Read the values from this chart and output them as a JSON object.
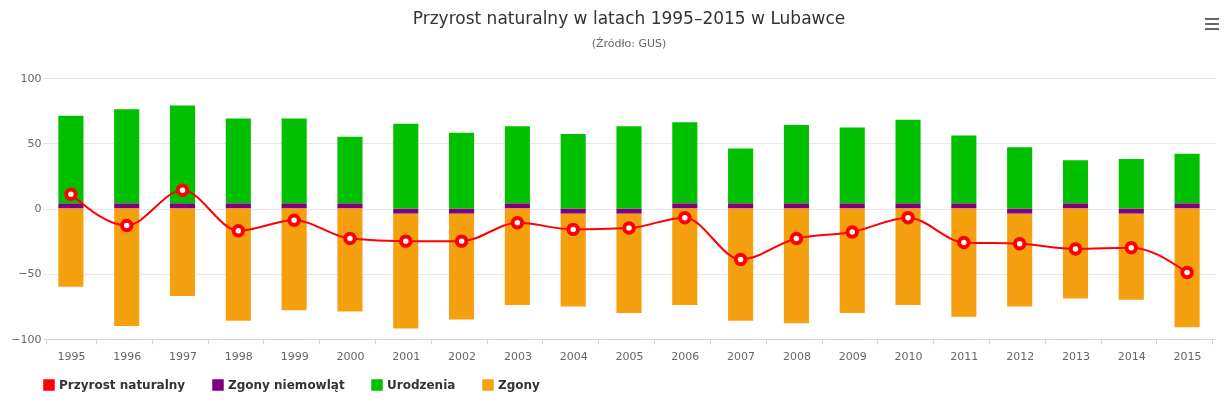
{
  "chart_data": {
    "type": "bar",
    "stacked": true,
    "title": "Przyrost naturalny w latach 1995–2015 w Lubawce",
    "subtitle": "(Źródło: GUS)",
    "categories": [
      "1995",
      "1996",
      "1997",
      "1998",
      "1999",
      "2000",
      "2001",
      "2002",
      "2003",
      "2004",
      "2005",
      "2006",
      "2007",
      "2008",
      "2009",
      "2010",
      "2011",
      "2012",
      "2013",
      "2014",
      "2015"
    ],
    "series": [
      {
        "name": "Przyrost naturalny",
        "type": "line",
        "color": "#ff0000",
        "values": [
          11,
          -13,
          14,
          -17,
          -9,
          -23,
          -25,
          -25,
          -11,
          -16,
          -15,
          -7,
          -39,
          -23,
          -18,
          -7,
          -26,
          -27,
          -31,
          -30,
          -49
        ]
      },
      {
        "name": "Zgony niemowląt",
        "color": "#800080",
        "values": [
          4,
          4,
          4,
          4,
          4,
          4,
          -4,
          -4,
          4,
          -4,
          -4,
          4,
          4,
          4,
          4,
          4,
          4,
          -4,
          4,
          -4,
          4
        ]
      },
      {
        "name": "Urodzenia",
        "color": "#00c000",
        "values": [
          67,
          72,
          75,
          65,
          65,
          51,
          65,
          58,
          59,
          57,
          63,
          62,
          42,
          60,
          58,
          64,
          52,
          47,
          33,
          38,
          38
        ]
      },
      {
        "name": "Zgony",
        "color": "#f5a00f",
        "values": [
          -60,
          -90,
          -67,
          -86,
          -78,
          -79,
          -88,
          -81,
          -74,
          -71,
          -76,
          -74,
          -86,
          -88,
          -80,
          -74,
          -83,
          -71,
          -69,
          -66,
          -91
        ]
      }
    ],
    "ylim": [
      -100,
      100
    ],
    "yticks": [
      -100,
      -50,
      0,
      50,
      100
    ],
    "grid": "y",
    "legend": "bottom",
    "marker": "circle"
  }
}
